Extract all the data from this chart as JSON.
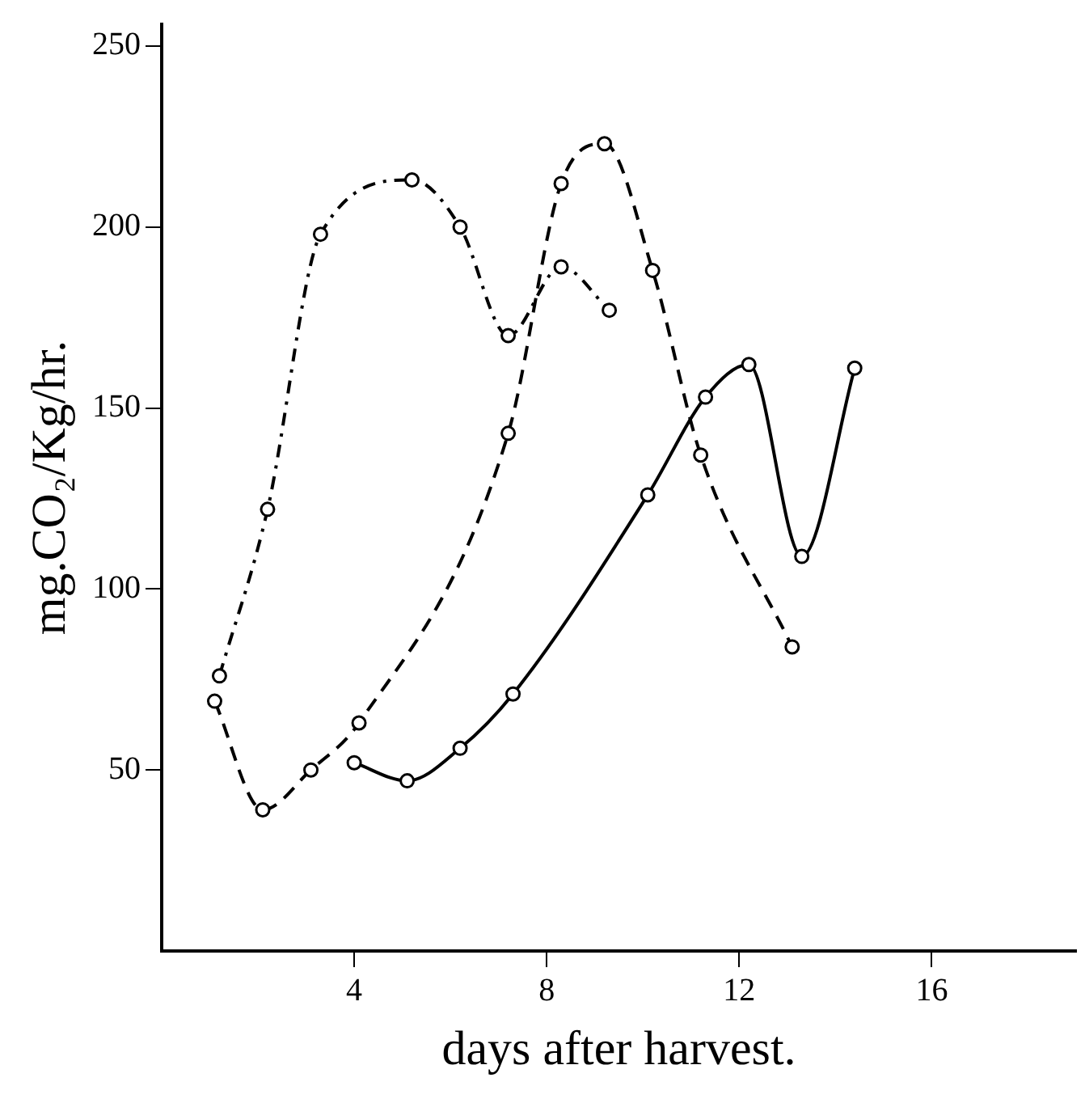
{
  "chart_data": {
    "type": "line",
    "xlabel": "days after harvest.",
    "ylabel": "mg.CO₂/Kg/hr.",
    "xlim": [
      0,
      19
    ],
    "ylim": [
      0,
      256
    ],
    "xticks": [
      4,
      8,
      12,
      16
    ],
    "yticks": [
      50,
      100,
      150,
      200,
      250
    ],
    "grid": false,
    "legend": false,
    "marker": "circle",
    "series": [
      {
        "color": "#000000",
        "line_style": "dashdot",
        "x": [
          1.2,
          2.2,
          3.3,
          5.2,
          6.2,
          7.2,
          8.3,
          9.3
        ],
        "values": [
          76,
          122,
          198,
          213,
          200,
          170,
          189,
          177
        ]
      },
      {
        "color": "#000000",
        "line_style": "dashed",
        "x": [
          1.1,
          2.1,
          3.1,
          4.1,
          7.2,
          8.3,
          9.2,
          10.2,
          11.2,
          13.1
        ],
        "values": [
          69,
          39,
          50,
          63,
          143,
          212,
          223,
          188,
          137,
          84
        ]
      },
      {
        "color": "#000000",
        "line_style": "solid",
        "x": [
          4.0,
          5.1,
          6.2,
          7.3,
          10.1,
          11.3,
          12.2,
          13.3,
          14.4
        ],
        "values": [
          52,
          47,
          56,
          71,
          126,
          153,
          162,
          109,
          161
        ]
      }
    ]
  }
}
